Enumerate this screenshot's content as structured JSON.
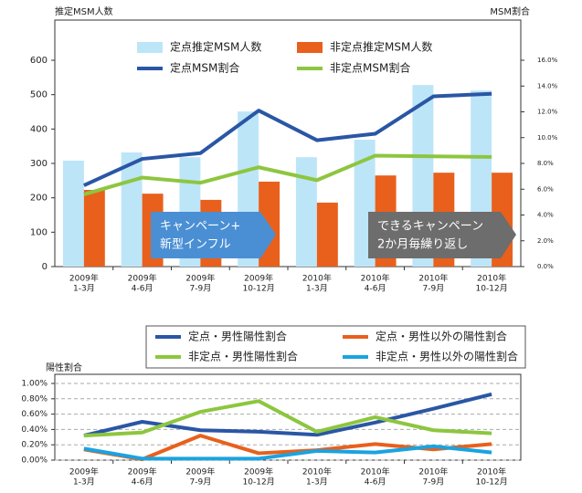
{
  "chart_data": [
    {
      "type": "bar",
      "y_label": "推定MSM人数",
      "y2_label": "MSM割合",
      "categories": [
        [
          "2009年",
          "1-3月"
        ],
        [
          "2009年",
          "4-6月"
        ],
        [
          "2009年",
          "7-9月"
        ],
        [
          "2009年",
          "10-12月"
        ],
        [
          "2010年",
          "1-3月"
        ],
        [
          "2010年",
          "4-6月"
        ],
        [
          "2010年",
          "7-9月"
        ],
        [
          "2010年",
          "10-12月"
        ]
      ],
      "series": [
        {
          "name": "定点推定MSM人数",
          "type": "bar",
          "color": "#bde5f8",
          "values": [
            308,
            332,
            318,
            451,
            318,
            369,
            528,
            512
          ]
        },
        {
          "name": "非定点推定MSM人数",
          "type": "bar",
          "color": "#e8601c",
          "values": [
            223,
            212,
            194,
            247,
            186,
            265,
            273,
            273
          ]
        },
        {
          "name": "定点MSM割合",
          "type": "line",
          "axis": "y2",
          "color": "#2a56a5",
          "values": [
            6.3,
            8.35,
            8.8,
            12.1,
            9.8,
            10.3,
            13.2,
            13.4
          ]
        },
        {
          "name": "非定点MSM割合",
          "type": "line",
          "axis": "y2",
          "color": "#8dc63f",
          "values": [
            5.6,
            6.9,
            6.5,
            7.7,
            6.7,
            8.6,
            8.55,
            8.5
          ]
        }
      ],
      "ylim": [
        0,
        600
      ],
      "yticks": [
        0,
        100,
        200,
        300,
        400,
        500,
        600
      ],
      "y2lim": [
        0,
        16
      ],
      "y2ticks": [
        {
          "value": 0,
          "label": "0.0%"
        },
        {
          "value": 2,
          "label": "2.0%"
        },
        {
          "value": 4,
          "label": "4.0%"
        },
        {
          "value": 6,
          "label": "6.0%"
        },
        {
          "value": 8,
          "label": "8.0%"
        },
        {
          "value": 10,
          "label": "10.0%"
        },
        {
          "value": 12,
          "label": "12.0%"
        },
        {
          "value": 14,
          "label": "14.0%"
        },
        {
          "value": 16,
          "label": "16.0%"
        }
      ],
      "grid": false,
      "legend": "top",
      "annotations": [
        [
          "キャンペーン+",
          "新型インフル"
        ],
        [
          "できるキャンペーン",
          "2か月毎繰り返し"
        ]
      ]
    },
    {
      "type": "line",
      "y_label": "陽性割合",
      "categories": [
        [
          "2009年",
          "1-3月"
        ],
        [
          "2009年",
          "4-6月"
        ],
        [
          "2009年",
          "7-9月"
        ],
        [
          "2009年",
          "10-12月"
        ],
        [
          "2010年",
          "1-3月"
        ],
        [
          "2010年",
          "4-6月"
        ],
        [
          "2010年",
          "7-9月"
        ],
        [
          "2010年",
          "10-12月"
        ]
      ],
      "series": [
        {
          "name": "定点・男性陽性割合",
          "color": "#2a56a5",
          "values": [
            0.32,
            0.5,
            0.39,
            0.37,
            0.33,
            0.49,
            0.67,
            0.86
          ]
        },
        {
          "name": "定点・男性以外の陽性割合",
          "color": "#e8601c",
          "values": [
            0.14,
            0.01,
            0.32,
            0.09,
            0.13,
            0.21,
            0.14,
            0.21
          ]
        },
        {
          "name": "非定点・男性陽性割合",
          "color": "#8dc63f",
          "values": [
            0.32,
            0.36,
            0.63,
            0.77,
            0.37,
            0.56,
            0.39,
            0.35
          ]
        },
        {
          "name": "非定点・男性以外の陽性割合",
          "color": "#1aa3e0",
          "values": [
            0.15,
            0.02,
            0.02,
            0.02,
            0.12,
            0.1,
            0.18,
            0.1
          ]
        }
      ],
      "ylim": [
        0,
        1
      ],
      "yticks": [
        {
          "value": 0,
          "label": "0.00%"
        },
        {
          "value": 0.2,
          "label": "0.20%"
        },
        {
          "value": 0.4,
          "label": "0.40%"
        },
        {
          "value": 0.6,
          "label": "0.60%"
        },
        {
          "value": 0.8,
          "label": "0.80%"
        },
        {
          "value": 1,
          "label": "1.00%"
        }
      ],
      "grid": true,
      "legend": "top"
    }
  ]
}
